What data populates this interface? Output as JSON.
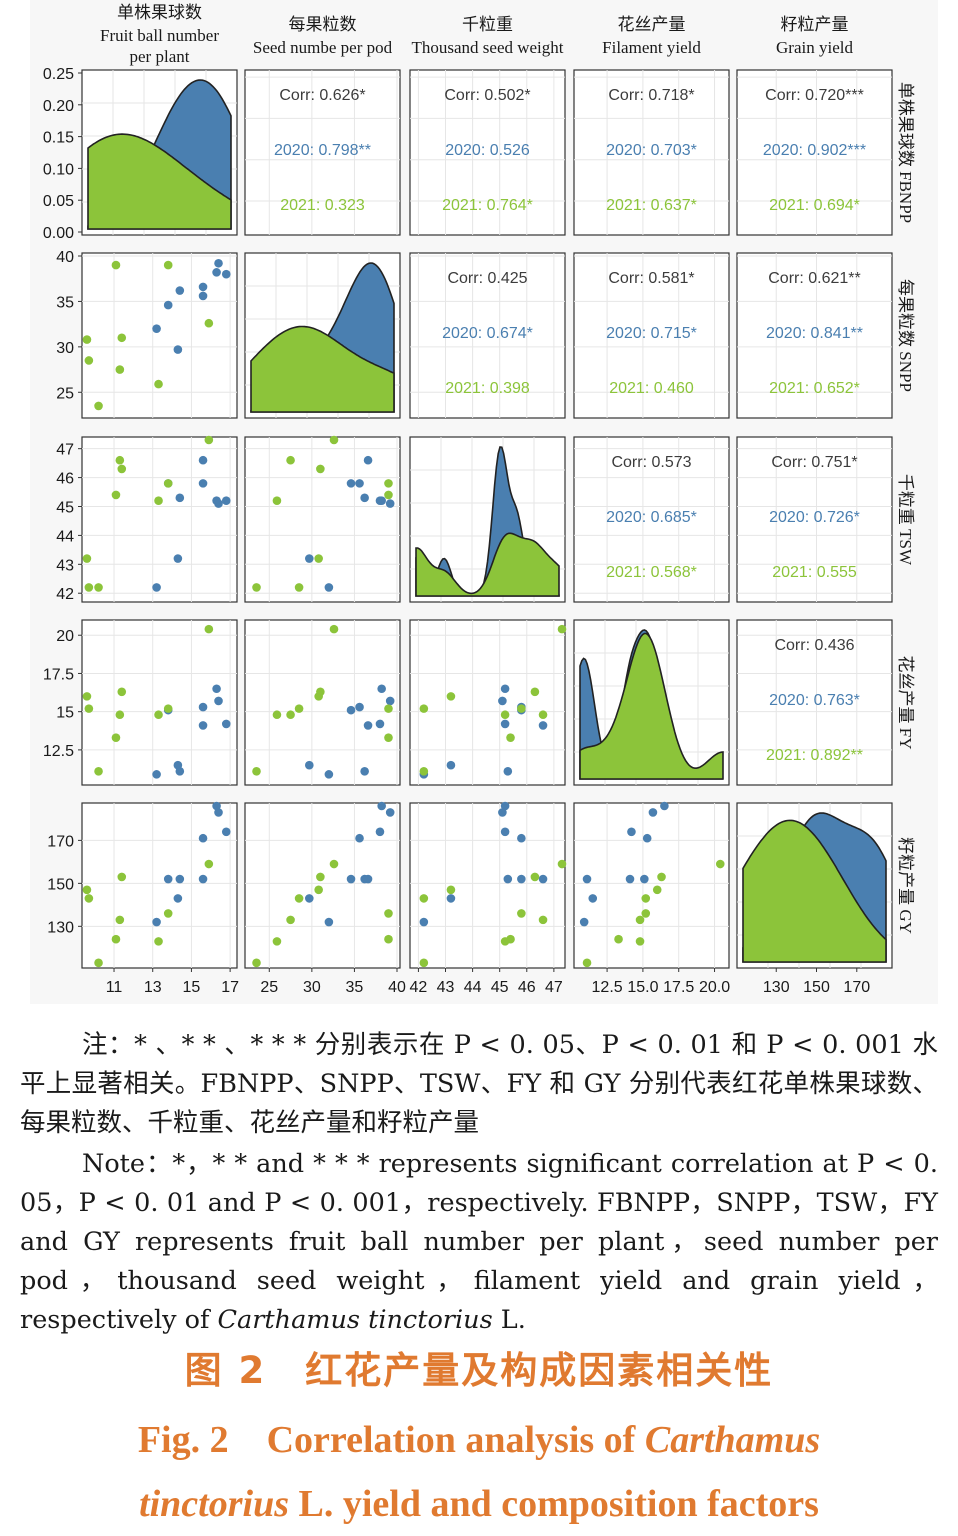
{
  "chart_data": {
    "type": "scatter",
    "variables": [
      {
        "key": "FBNPP",
        "top_cn": "单株果球数",
        "top_en": [
          "Fruit ball number",
          "per plant"
        ],
        "side": "单株果球数 FBNPP"
      },
      {
        "key": "SNPP",
        "top_cn": "每果粒数",
        "top_en": [
          "Seed numbe per pod"
        ],
        "side": "每果粒数 SNPP"
      },
      {
        "key": "TSW",
        "top_cn": "千粒重",
        "top_en": [
          "Thousand seed weight"
        ],
        "side": "千粒重 TSW"
      },
      {
        "key": "FY",
        "top_cn": "花丝产量",
        "top_en": [
          "Filament yield"
        ],
        "side": "花丝产量 FY"
      },
      {
        "key": "GY",
        "top_cn": "籽粒产量",
        "top_en": [
          "Grain yield"
        ],
        "side": "籽粒产量 GY"
      }
    ],
    "series": [
      {
        "name": "2020",
        "color": "#4a7fb0"
      },
      {
        "name": "2021",
        "color": "#8cc43a"
      }
    ],
    "axes": {
      "FBNPP": {
        "range": [
          9.5,
          17.2
        ],
        "ticks": [
          11,
          13,
          15,
          17
        ]
      },
      "SNPP": {
        "range": [
          22.5,
          40
        ],
        "ticks": [
          25,
          30,
          35,
          40
        ]
      },
      "TSW": {
        "range": [
          41.8,
          47.3
        ],
        "ticks": [
          42,
          43,
          44,
          45,
          46,
          47
        ]
      },
      "FY": {
        "range": [
          10.4,
          20.8
        ],
        "ticks": [
          12.5,
          15.0,
          17.5,
          20.0
        ]
      },
      "GY": {
        "range": [
          112,
          186
        ],
        "ticks": [
          130,
          150,
          170
        ]
      }
    },
    "density_y_axis": {
      "range": [
        0,
        0.25
      ],
      "ticks": [
        "0.00",
        "0.05",
        "0.10",
        "0.15",
        "0.20",
        "0.25"
      ]
    },
    "points": {
      "2020": [
        {
          "FBNPP": 13.2,
          "SNPP": 32.0,
          "TSW": 42.2,
          "FY": 10.9,
          "GY": 132
        },
        {
          "FBNPP": 13.8,
          "SNPP": 34.6,
          "TSW": 45.8,
          "FY": 15.1,
          "GY": 152
        },
        {
          "FBNPP": 14.3,
          "SNPP": 29.7,
          "TSW": 43.2,
          "FY": 11.5,
          "GY": 143
        },
        {
          "FBNPP": 14.4,
          "SNPP": 36.2,
          "TSW": 45.3,
          "FY": 11.1,
          "GY": 152
        },
        {
          "FBNPP": 15.6,
          "SNPP": 35.6,
          "TSW": 45.8,
          "FY": 15.3,
          "GY": 171
        },
        {
          "FBNPP": 15.6,
          "SNPP": 36.6,
          "TSW": 46.6,
          "FY": 14.1,
          "GY": 152
        },
        {
          "FBNPP": 16.3,
          "SNPP": 38.2,
          "TSW": 45.2,
          "FY": 16.5,
          "GY": 186
        },
        {
          "FBNPP": 16.4,
          "SNPP": 39.2,
          "TSW": 45.1,
          "FY": 15.7,
          "GY": 183
        },
        {
          "FBNPP": 16.8,
          "SNPP": 38.0,
          "TSW": 45.2,
          "FY": 14.2,
          "GY": 174
        }
      ],
      "2021": [
        {
          "FBNPP": 9.6,
          "SNPP": 30.8,
          "TSW": 43.2,
          "FY": 16.0,
          "GY": 147
        },
        {
          "FBNPP": 9.7,
          "SNPP": 28.5,
          "TSW": 42.2,
          "FY": 15.2,
          "GY": 143
        },
        {
          "FBNPP": 10.2,
          "SNPP": 23.5,
          "TSW": 42.2,
          "FY": 11.1,
          "GY": 113
        },
        {
          "FBNPP": 11.1,
          "SNPP": 39.0,
          "TSW": 45.4,
          "FY": 13.3,
          "GY": 124
        },
        {
          "FBNPP": 11.3,
          "SNPP": 27.5,
          "TSW": 46.6,
          "FY": 14.8,
          "GY": 133
        },
        {
          "FBNPP": 11.4,
          "SNPP": 31.0,
          "TSW": 46.3,
          "FY": 16.3,
          "GY": 153
        },
        {
          "FBNPP": 13.3,
          "SNPP": 25.9,
          "TSW": 45.2,
          "FY": 14.8,
          "GY": 123
        },
        {
          "FBNPP": 13.8,
          "SNPP": 39.0,
          "TSW": 45.8,
          "FY": 15.2,
          "GY": 136
        },
        {
          "FBNPP": 15.9,
          "SNPP": 32.6,
          "TSW": 47.3,
          "FY": 20.4,
          "GY": 159
        }
      ]
    },
    "correlations": [
      {
        "row": 0,
        "col": 1,
        "corr": "Corr: 0.626*",
        "y2020": "2020: 0.798**",
        "y2021": "2021: 0.323"
      },
      {
        "row": 0,
        "col": 2,
        "corr": "Corr: 0.502*",
        "y2020": "2020: 0.526",
        "y2021": "2021: 0.764*"
      },
      {
        "row": 0,
        "col": 3,
        "corr": "Corr: 0.718*",
        "y2020": "2020: 0.703*",
        "y2021": "2021: 0.637*"
      },
      {
        "row": 0,
        "col": 4,
        "corr": "Corr: 0.720***",
        "y2020": "2020: 0.902***",
        "y2021": "2021: 0.694*"
      },
      {
        "row": 1,
        "col": 2,
        "corr": "Corr: 0.425",
        "y2020": "2020: 0.674*",
        "y2021": "2021: 0.398"
      },
      {
        "row": 1,
        "col": 3,
        "corr": "Corr: 0.581*",
        "y2020": "2020: 0.715*",
        "y2021": "2021: 0.460"
      },
      {
        "row": 1,
        "col": 4,
        "corr": "Corr: 0.621**",
        "y2020": "2020: 0.841**",
        "y2021": "2021: 0.652*"
      },
      {
        "row": 2,
        "col": 3,
        "corr": "Corr: 0.573",
        "y2020": "2020: 0.685*",
        "y2021": "2021: 0.568*"
      },
      {
        "row": 2,
        "col": 4,
        "corr": "Corr: 0.751*",
        "y2020": "2020: 0.726*",
        "y2021": "2021: 0.555"
      },
      {
        "row": 3,
        "col": 4,
        "corr": "Corr: 0.436",
        "y2020": "2020: 0.763*",
        "y2021": "2021: 0.892**"
      }
    ]
  },
  "notes": {
    "cn": "注：* 、* * 、* * * 分别表示在 P < 0. 05、P < 0. 01 和 P < 0. 001 水平上显著相关。FBNPP、SNPP、TSW、FY 和 GY 分别代表红花单株果球数、每果粒数、千粒重、花丝产量和籽粒产量",
    "en_a": "Note：*，* * and * * * represents significant correlation at P < 0. 05，P < 0. 01 and P < 0. 001，respectively. FBNPP，SNPP，TSW，FY and GY represents fruit ball number per plant，seed number per pod，thousand seed weight，filament yield and grain yield，respectively of ",
    "en_italic": "Carthamus tinctorius",
    "en_b": " L."
  },
  "captions": {
    "cn": "图 2　红花产量及构成因素相关性",
    "en_line1_a": "Fig. 2　Correlation analysis of ",
    "en_line1_italic": "Carthamus",
    "en_line2_italic": "tinctorius",
    "en_line2_b": " L.  yield and composition factors"
  },
  "colors": {
    "caption": "#e07a30",
    "series_2020": "#4a7fb0",
    "series_2021": "#8cc43a",
    "panel_bg": "#ffffff",
    "grid": "#e6e6e6",
    "figure_bg": "#f7f7f7",
    "text_corr": "#3c3c3c"
  }
}
